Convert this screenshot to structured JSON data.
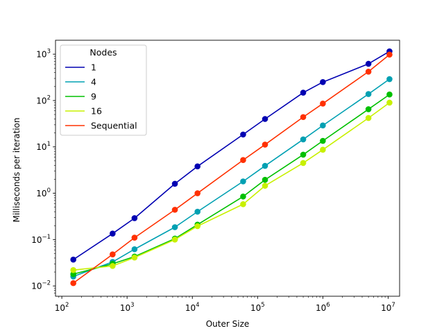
{
  "chart_data": {
    "type": "line",
    "xlabel": "Outer Size",
    "ylabel": "Milliseconds per iteration",
    "xscale": "log",
    "yscale": "log",
    "xlim": [
      80,
      15000000
    ],
    "ylim": [
      0.006,
      2000
    ],
    "grid": false,
    "legend": {
      "title": "Nodes",
      "placement": "top-left"
    },
    "x_ticks": [
      {
        "value": 100,
        "base": "10",
        "exp": "2"
      },
      {
        "value": 1000,
        "base": "10",
        "exp": "3"
      },
      {
        "value": 10000,
        "base": "10",
        "exp": "4"
      },
      {
        "value": 100000,
        "base": "10",
        "exp": "5"
      },
      {
        "value": 1000000,
        "base": "10",
        "exp": "6"
      },
      {
        "value": 10000000,
        "base": "10",
        "exp": "7"
      }
    ],
    "y_ticks": [
      {
        "value": 0.01,
        "base": "10",
        "exp": "−2"
      },
      {
        "value": 0.1,
        "base": "10",
        "exp": "−1"
      },
      {
        "value": 1,
        "base": "10",
        "exp": "0"
      },
      {
        "value": 10,
        "base": "10",
        "exp": "1"
      },
      {
        "value": 100,
        "base": "10",
        "exp": "2"
      },
      {
        "value": 1000,
        "base": "10",
        "exp": "3"
      }
    ],
    "series": [
      {
        "name": "1",
        "color": "#0000b2",
        "x": [
          150,
          600,
          1300,
          5400,
          12000,
          60000,
          130000,
          500000,
          1000000,
          5000000,
          10500000
        ],
        "y": [
          0.037,
          0.135,
          0.29,
          1.6,
          3.8,
          18.5,
          40,
          148,
          250,
          620,
          1150
        ]
      },
      {
        "name": "4",
        "color": "#00a0b2",
        "x": [
          150,
          600,
          1300,
          5400,
          12000,
          60000,
          130000,
          500000,
          1000000,
          5000000,
          10500000
        ],
        "y": [
          0.016,
          0.033,
          0.062,
          0.185,
          0.4,
          1.8,
          3.9,
          14.5,
          29,
          138,
          290
        ]
      },
      {
        "name": "9",
        "color": "#00c000",
        "x": [
          150,
          600,
          1300,
          5400,
          12000,
          60000,
          130000,
          500000,
          1000000,
          5000000,
          10500000
        ],
        "y": [
          0.018,
          0.03,
          0.043,
          0.105,
          0.21,
          0.85,
          1.95,
          6.8,
          13.5,
          65,
          135
        ]
      },
      {
        "name": "16",
        "color": "#c8f000",
        "x": [
          150,
          600,
          1300,
          5400,
          12000,
          60000,
          130000,
          500000,
          1000000,
          5000000,
          10500000
        ],
        "y": [
          0.022,
          0.027,
          0.041,
          0.1,
          0.195,
          0.58,
          1.45,
          4.5,
          8.7,
          42,
          90
        ]
      },
      {
        "name": "Sequential",
        "color": "#ff3000",
        "x": [
          150,
          600,
          1300,
          5400,
          12000,
          60000,
          130000,
          500000,
          1000000,
          5000000,
          10500000
        ],
        "y": [
          0.0115,
          0.048,
          0.11,
          0.44,
          1.0,
          5.2,
          11.2,
          44,
          86,
          420,
          980
        ]
      }
    ]
  }
}
